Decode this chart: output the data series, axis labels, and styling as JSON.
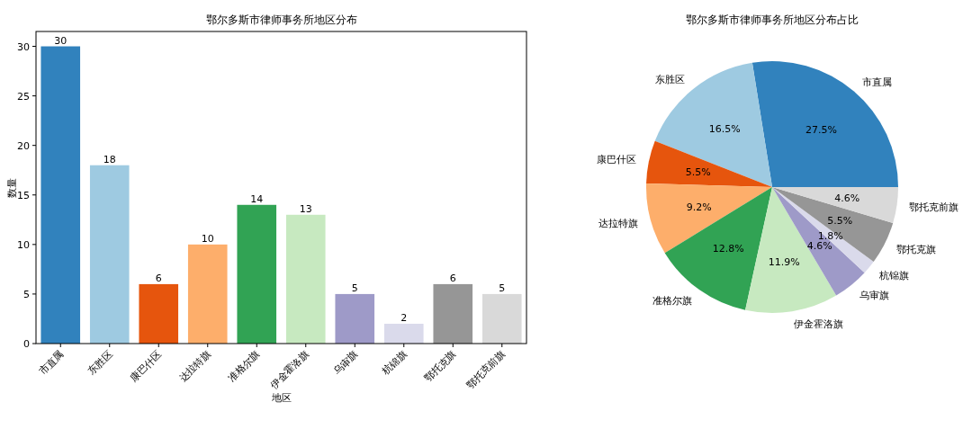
{
  "chart_data": [
    {
      "type": "bar",
      "title": "鄂尔多斯市律师事务所地区分布",
      "xlabel": "地区",
      "ylabel": "数量",
      "categories": [
        "市直属",
        "东胜区",
        "康巴什区",
        "达拉特旗",
        "准格尔旗",
        "伊金霍洛旗",
        "乌审旗",
        "杭锦旗",
        "鄂托克旗",
        "鄂托克前旗"
      ],
      "values": [
        30,
        18,
        6,
        10,
        14,
        13,
        5,
        2,
        6,
        5
      ],
      "colors": [
        "#3182bd",
        "#9ecae1",
        "#e6550d",
        "#fdae6b",
        "#31a354",
        "#c7e9c0",
        "#9e9ac8",
        "#dadaeb",
        "#969696",
        "#d9d9d9"
      ],
      "ylim": [
        0,
        31.5
      ],
      "yticks": [
        0,
        5,
        10,
        15,
        20,
        25,
        30
      ],
      "data_labels": true
    },
    {
      "type": "pie",
      "title": "鄂尔多斯市律师事务所地区分布占比",
      "categories": [
        "市直属",
        "东胜区",
        "康巴什区",
        "达拉特旗",
        "准格尔旗",
        "伊金霍洛旗",
        "乌审旗",
        "杭锦旗",
        "鄂托克旗",
        "鄂托克前旗"
      ],
      "values": [
        27.5,
        16.5,
        5.5,
        9.2,
        12.8,
        11.9,
        4.6,
        1.8,
        5.5,
        4.6
      ],
      "value_labels": [
        "27.5%",
        "16.5%",
        "5.5%",
        "9.2%",
        "12.8%",
        "11.9%",
        "4.6%",
        "1.8%",
        "5.5%",
        "4.6%"
      ],
      "colors": [
        "#3182bd",
        "#9ecae1",
        "#e6550d",
        "#fdae6b",
        "#31a354",
        "#c7e9c0",
        "#9e9ac8",
        "#dadaeb",
        "#969696",
        "#d9d9d9"
      ]
    }
  ]
}
